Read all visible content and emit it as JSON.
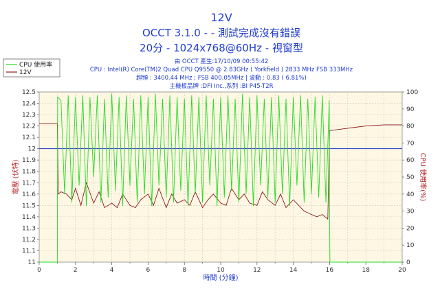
{
  "chart_data": {
    "type": "line",
    "title_lines": [
      "12V",
      "OCCT 3.1.0 - - 測試完成沒有錯誤",
      "20分 - 1024x768@60Hz - 視窗型"
    ],
    "info_lines": [
      "由 OCCT 產生:17/10/09 00:55:42",
      "CPU : Intel(R) Core(TM)2 Quad CPU Q9550 @ 2.83GHz ( Yorkfield ) 2833 MHz FSB 333MHz",
      "超頻 : 3400.44 MHz ; FSB 400.05MHz | 波動 : 0.83 ( 6.81%)",
      "主機板品牌 :DFI Inc.,系列 :BI P45-T2R"
    ],
    "xlabel": "時間 (分鐘)",
    "ylabel_left": "電壓 (伏特)",
    "ylabel_right": "CPU 使用率(%)",
    "xlim": [
      0,
      20
    ],
    "ylim_left": [
      11,
      12.5
    ],
    "ylim_right": [
      0,
      100
    ],
    "x_ticks": [
      "0",
      "2",
      "4",
      "6",
      "8",
      "10",
      "12",
      "14",
      "16",
      "18",
      "20"
    ],
    "y_left_ticks": [
      "11",
      "11.1",
      "11.2",
      "11.3",
      "11.4",
      "11.5",
      "11.6",
      "11.7",
      "11.8",
      "11.9",
      "12",
      "12.1",
      "12.2",
      "12.3",
      "12.4",
      "12.5"
    ],
    "y_right_ticks": [
      "0",
      "10",
      "20",
      "30",
      "40",
      "50",
      "60",
      "70",
      "80",
      "90",
      "100"
    ],
    "reference_line": {
      "axis": "left",
      "value": 12.0,
      "color": "#2233cc"
    },
    "legend": [
      {
        "label": "CPU 使用率",
        "color": "#22dd22"
      },
      {
        "label": "12V",
        "color": "#8b1a1a"
      }
    ],
    "series": [
      {
        "name": "12V",
        "axis": "left",
        "color": "#8b1a1a",
        "x": [
          0,
          1.0,
          1.05,
          1.2,
          1.5,
          1.8,
          2.0,
          2.3,
          2.6,
          3.0,
          3.3,
          3.6,
          4.0,
          4.3,
          4.6,
          5.0,
          5.3,
          5.6,
          6.0,
          6.3,
          6.6,
          7.0,
          7.3,
          7.6,
          8.0,
          8.3,
          8.6,
          9.0,
          9.3,
          9.6,
          10.0,
          10.3,
          10.6,
          11.0,
          11.3,
          11.6,
          12.0,
          12.3,
          12.6,
          13.0,
          13.3,
          13.6,
          14.0,
          14.3,
          14.6,
          15.0,
          15.3,
          15.6,
          15.9,
          16.0,
          16.05,
          17.0,
          18.0,
          19.0,
          20.0
        ],
        "values": [
          12.22,
          12.22,
          11.6,
          11.62,
          11.6,
          11.55,
          11.65,
          11.5,
          11.7,
          11.52,
          11.62,
          11.48,
          11.52,
          11.48,
          11.6,
          11.5,
          11.48,
          11.55,
          11.6,
          11.5,
          11.65,
          11.48,
          11.6,
          11.52,
          11.55,
          11.5,
          11.62,
          11.48,
          11.55,
          11.6,
          11.52,
          11.5,
          11.65,
          11.55,
          11.6,
          11.52,
          11.5,
          11.62,
          11.55,
          11.5,
          11.6,
          11.48,
          11.55,
          11.5,
          11.45,
          11.42,
          11.4,
          11.42,
          11.38,
          12.16,
          12.16,
          12.18,
          12.2,
          12.21,
          12.21
        ]
      },
      {
        "name": "CPU 使用率",
        "axis": "right",
        "color": "#22dd22",
        "x": [
          0,
          1.0,
          1.02,
          1.2,
          1.4,
          1.6,
          1.8,
          2.0,
          2.2,
          2.4,
          2.6,
          2.8,
          3.0,
          3.2,
          3.4,
          3.6,
          3.8,
          4.0,
          4.2,
          4.4,
          4.6,
          4.8,
          5.0,
          5.2,
          5.4,
          5.6,
          5.8,
          6.0,
          6.2,
          6.4,
          6.6,
          6.8,
          7.0,
          7.2,
          7.4,
          7.6,
          7.8,
          8.0,
          8.2,
          8.4,
          8.6,
          8.8,
          9.0,
          9.2,
          9.4,
          9.6,
          9.8,
          10.0,
          10.2,
          10.4,
          10.6,
          10.8,
          11.0,
          11.2,
          11.4,
          11.6,
          11.8,
          12.0,
          12.2,
          12.4,
          12.6,
          12.8,
          13.0,
          13.2,
          13.4,
          13.6,
          13.8,
          14.0,
          14.2,
          14.4,
          14.6,
          14.8,
          15.0,
          15.2,
          15.4,
          15.6,
          15.8,
          15.98,
          16.0,
          16.02,
          20.0
        ],
        "values": [
          0,
          0,
          97,
          95,
          40,
          98,
          35,
          97,
          45,
          98,
          33,
          97,
          50,
          98,
          35,
          96,
          38,
          99,
          42,
          97,
          33,
          98,
          45,
          96,
          35,
          98,
          40,
          97,
          33,
          99,
          45,
          96,
          38,
          98,
          35,
          97,
          42,
          96,
          33,
          98,
          40,
          97,
          35,
          98,
          45,
          96,
          33,
          97,
          38,
          98,
          42,
          96,
          35,
          99,
          40,
          97,
          33,
          98,
          45,
          96,
          38,
          97,
          35,
          98,
          40,
          96,
          33,
          97,
          45,
          98,
          35,
          96,
          40,
          97,
          38,
          98,
          35,
          95,
          30,
          0,
          0
        ]
      }
    ]
  }
}
